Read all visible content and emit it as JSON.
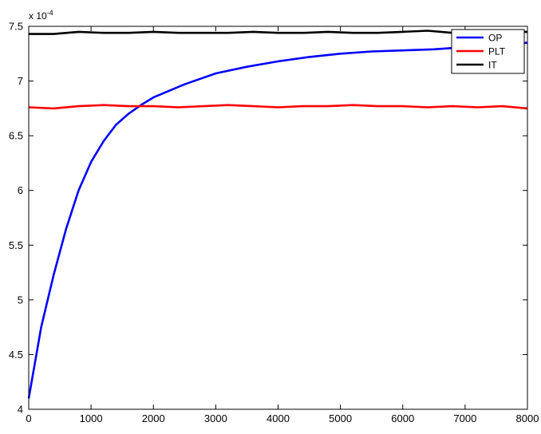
{
  "chart_data": {
    "type": "line",
    "title": "",
    "xlabel": "",
    "ylabel": "",
    "xlim": [
      0,
      8000
    ],
    "ylim": [
      4,
      7.5
    ],
    "y_scale_label": {
      "base": "x 10",
      "exponent": "-4"
    },
    "x_ticks": [
      "0",
      "1000",
      "2000",
      "3000",
      "4000",
      "5000",
      "6000",
      "7000",
      "8000"
    ],
    "y_ticks": [
      "4",
      "4.5",
      "5",
      "5.5",
      "6",
      "6.5",
      "7",
      "7.5"
    ],
    "grid": false,
    "legend_position": "top-right",
    "series": [
      {
        "name": "OP",
        "color": "#0000ff",
        "x": [
          0,
          200,
          400,
          600,
          800,
          1000,
          1200,
          1400,
          1600,
          1800,
          2000,
          2500,
          3000,
          3500,
          4000,
          4500,
          5000,
          5500,
          6000,
          6500,
          7000,
          7500,
          8000
        ],
        "y": [
          4.1,
          4.75,
          5.23,
          5.65,
          6.0,
          6.26,
          6.45,
          6.6,
          6.7,
          6.78,
          6.85,
          6.97,
          7.07,
          7.13,
          7.18,
          7.22,
          7.25,
          7.27,
          7.28,
          7.29,
          7.31,
          7.33,
          7.35
        ]
      },
      {
        "name": "PLT",
        "color": "#ff0000",
        "x": [
          0,
          400,
          800,
          1200,
          1600,
          2000,
          2400,
          2800,
          3200,
          3600,
          4000,
          4400,
          4800,
          5200,
          5600,
          6000,
          6400,
          6800,
          7200,
          7600,
          8000
        ],
        "y": [
          6.76,
          6.75,
          6.77,
          6.78,
          6.77,
          6.77,
          6.76,
          6.77,
          6.78,
          6.77,
          6.76,
          6.77,
          6.77,
          6.78,
          6.77,
          6.77,
          6.76,
          6.77,
          6.76,
          6.77,
          6.75
        ]
      },
      {
        "name": "IT",
        "color": "#000000",
        "x": [
          0,
          400,
          800,
          1200,
          1600,
          2000,
          2400,
          2800,
          3200,
          3600,
          4000,
          4400,
          4800,
          5200,
          5600,
          6000,
          6400,
          6800,
          7200,
          7600,
          8000
        ],
        "y": [
          7.43,
          7.43,
          7.45,
          7.44,
          7.44,
          7.45,
          7.44,
          7.44,
          7.44,
          7.45,
          7.44,
          7.44,
          7.45,
          7.44,
          7.44,
          7.45,
          7.46,
          7.44,
          7.44,
          7.45,
          7.45
        ]
      }
    ]
  }
}
